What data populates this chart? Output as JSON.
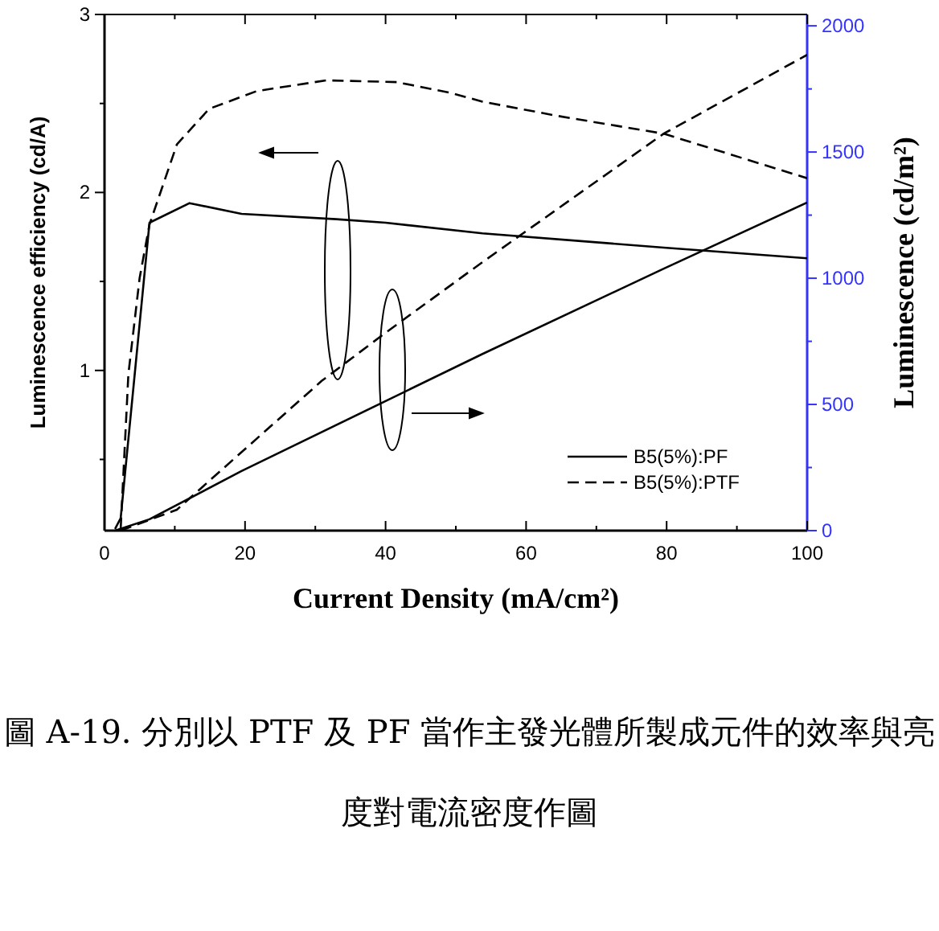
{
  "chart_data": {
    "type": "line",
    "xlabel": "Current Density (mA/cm²)",
    "ylabel": "Luminescence efficiency (cd/A)",
    "y2label": "Luminescence (cd/m²)",
    "xlim": [
      0,
      100
    ],
    "xticks": [
      0,
      {
        "value": 10,
        "label": null
      },
      20,
      {
        "value": 30,
        "label": null
      },
      40,
      {
        "value": 50,
        "label": null
      },
      60,
      {
        "value": 70,
        "label": null
      },
      80,
      {
        "value": 90,
        "label": null
      },
      100
    ],
    "ylim": [
      0.1,
      3
    ],
    "yticks": [
      {
        "value": 0.5,
        "label": null
      },
      1,
      {
        "value": 1.5,
        "label": null
      },
      2,
      {
        "value": 2.5,
        "label": null
      },
      3
    ],
    "y2lim": [
      0,
      2045
    ],
    "y2ticks": [
      0,
      {
        "value": 250,
        "label": null
      },
      500,
      {
        "value": 750,
        "label": null
      },
      1000,
      {
        "value": 1250,
        "label": null
      },
      1500,
      {
        "value": 1750,
        "label": null
      },
      2000
    ],
    "legend": "bottom right",
    "series": [
      {
        "name": "B5(5%):PF",
        "color": "#000000",
        "line_style": "solid",
        "axis": "y",
        "x": [
          1.5,
          2.3,
          6.4,
          12.1,
          19.5,
          33,
          40,
          53.8,
          70,
          79.6,
          100
        ],
        "values": [
          0.11,
          0.17,
          1.83,
          1.94,
          1.88,
          1.85,
          1.83,
          1.77,
          1.72,
          1.69,
          1.63
        ]
      },
      {
        "name": "B5(5%):PTF",
        "color": "#000000",
        "line_style": "dashed",
        "axis": "y",
        "x": [
          2.3,
          3.4,
          5,
          6.4,
          10.3,
          14.9,
          21.7,
          31.6,
          41.6,
          49.2,
          53.8,
          64.5,
          79.6,
          100
        ],
        "values": [
          0.11,
          0.98,
          1.52,
          1.82,
          2.27,
          2.47,
          2.57,
          2.63,
          2.62,
          2.56,
          2.51,
          2.43,
          2.33,
          2.08
        ]
      },
      {
        "color": "#000000",
        "line_style": "solid",
        "axis": "y2",
        "x": [
          1.5,
          6.4,
          19.5,
          53.8,
          79.6,
          100
        ],
        "values": [
          0,
          45,
          236,
          700,
          1038,
          1300
        ]
      },
      {
        "color": "#000000",
        "line_style": "dashed",
        "axis": "y2",
        "x": [
          2.3,
          10.3,
          30.9,
          40,
          53.8,
          79.6,
          100
        ],
        "values": [
          0,
          83,
          593,
          784,
          1064,
          1573,
          1885
        ]
      }
    ],
    "annotations": [
      "圖 A-19. 分別以 PTF 及 PF 當作主發光體所製成元件的效率與亮度對電流密度作圖"
    ]
  }
}
